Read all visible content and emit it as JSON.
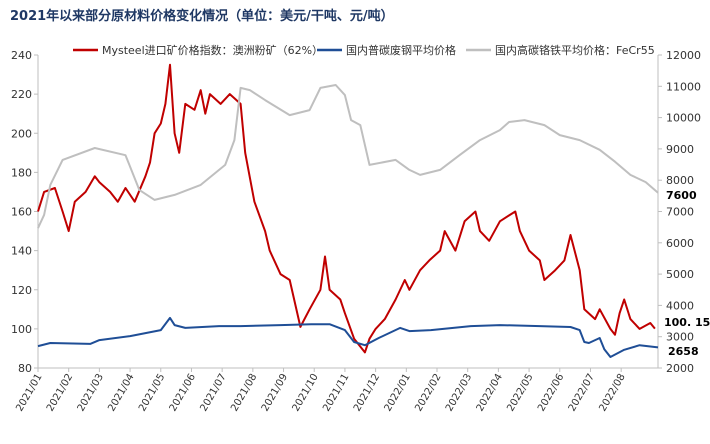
{
  "chart_data": {
    "type": "line",
    "title": "2021年以来部分原材料价格变化情况（单位：美元/干吨、元/吨）",
    "x_unit": "months since 2021/01",
    "xlim": [
      0,
      20.2
    ],
    "x_tick_labels": [
      "2021/01",
      "2021/02",
      "2021/03",
      "2021/04",
      "2021/05",
      "2021/06",
      "2021/07",
      "2021/08",
      "2021/09",
      "2021/10",
      "2021/11",
      "2021/12",
      "2022/01",
      "2022/02",
      "2022/03",
      "2022/04",
      "2022/05",
      "2022/06",
      "2022/07",
      "2022/08"
    ],
    "y_left": {
      "lim": [
        80,
        240
      ],
      "ticks": [
        80,
        100,
        120,
        140,
        160,
        180,
        200,
        220,
        240
      ]
    },
    "y_right": {
      "lim": [
        2000,
        12000
      ],
      "ticks": [
        2000,
        3000,
        4000,
        5000,
        6000,
        7000,
        8000,
        9000,
        10000,
        11000,
        12000
      ]
    },
    "legend_position": "top",
    "series": [
      {
        "name": "Mysteel进口矿价格指数：澳洲粉矿（62%）",
        "axis": "left",
        "color": "#c00000",
        "end_label": "100. 15",
        "points": [
          [
            0,
            160
          ],
          [
            0.2,
            170
          ],
          [
            0.55,
            172
          ],
          [
            0.8,
            160
          ],
          [
            1.0,
            150
          ],
          [
            1.2,
            165
          ],
          [
            1.55,
            170
          ],
          [
            1.85,
            178
          ],
          [
            2.0,
            175
          ],
          [
            2.35,
            170
          ],
          [
            2.6,
            165
          ],
          [
            2.85,
            172
          ],
          [
            3.15,
            165
          ],
          [
            3.5,
            178
          ],
          [
            3.65,
            185
          ],
          [
            3.8,
            200
          ],
          [
            4.0,
            205
          ],
          [
            4.15,
            215
          ],
          [
            4.3,
            235
          ],
          [
            4.45,
            200
          ],
          [
            4.6,
            190
          ],
          [
            4.8,
            215
          ],
          [
            5.1,
            212
          ],
          [
            5.3,
            222
          ],
          [
            5.45,
            210
          ],
          [
            5.6,
            220
          ],
          [
            5.95,
            215
          ],
          [
            6.25,
            220
          ],
          [
            6.6,
            215
          ],
          [
            6.75,
            190
          ],
          [
            7.05,
            165
          ],
          [
            7.4,
            150
          ],
          [
            7.55,
            140
          ],
          [
            7.9,
            128
          ],
          [
            8.2,
            125
          ],
          [
            8.55,
            101
          ],
          [
            8.85,
            110
          ],
          [
            9.2,
            120
          ],
          [
            9.35,
            137
          ],
          [
            9.5,
            120
          ],
          [
            9.85,
            115
          ],
          [
            10.0,
            108
          ],
          [
            10.3,
            95
          ],
          [
            10.65,
            88
          ],
          [
            10.8,
            95
          ],
          [
            11.0,
            100
          ],
          [
            11.3,
            105
          ],
          [
            11.65,
            115
          ],
          [
            11.95,
            125
          ],
          [
            12.1,
            120
          ],
          [
            12.45,
            130
          ],
          [
            12.75,
            135
          ],
          [
            13.1,
            140
          ],
          [
            13.25,
            150
          ],
          [
            13.6,
            140
          ],
          [
            13.9,
            155
          ],
          [
            14.25,
            160
          ],
          [
            14.4,
            150
          ],
          [
            14.7,
            145
          ],
          [
            15.05,
            155
          ],
          [
            15.35,
            158
          ],
          [
            15.55,
            160
          ],
          [
            15.7,
            150
          ],
          [
            16.0,
            140
          ],
          [
            16.35,
            135
          ],
          [
            16.5,
            125
          ],
          [
            16.85,
            130
          ],
          [
            17.15,
            135
          ],
          [
            17.35,
            148
          ],
          [
            17.65,
            130
          ],
          [
            17.8,
            110
          ],
          [
            18.15,
            105
          ],
          [
            18.3,
            110
          ],
          [
            18.65,
            100
          ],
          [
            18.8,
            97
          ],
          [
            18.95,
            108
          ],
          [
            19.1,
            115
          ],
          [
            19.3,
            105
          ],
          [
            19.6,
            100
          ],
          [
            19.95,
            103
          ],
          [
            20.1,
            100.15
          ]
        ]
      },
      {
        "name": "国内普碳废钢平均价格",
        "axis": "right",
        "color": "#1f4e96",
        "end_label": "2658",
        "points": [
          [
            0,
            2700
          ],
          [
            0.4,
            2800
          ],
          [
            1.7,
            2770
          ],
          [
            2.0,
            2890
          ],
          [
            3.0,
            3020
          ],
          [
            4.0,
            3210
          ],
          [
            4.3,
            3600
          ],
          [
            4.45,
            3370
          ],
          [
            4.8,
            3280
          ],
          [
            5.9,
            3340
          ],
          [
            6.6,
            3340
          ],
          [
            7.9,
            3370
          ],
          [
            8.9,
            3400
          ],
          [
            9.5,
            3400
          ],
          [
            10.0,
            3210
          ],
          [
            10.3,
            2830
          ],
          [
            10.65,
            2730
          ],
          [
            11.1,
            2960
          ],
          [
            11.8,
            3280
          ],
          [
            12.1,
            3180
          ],
          [
            12.8,
            3210
          ],
          [
            14.1,
            3340
          ],
          [
            15.05,
            3370
          ],
          [
            16.35,
            3340
          ],
          [
            17.35,
            3310
          ],
          [
            17.65,
            3210
          ],
          [
            17.8,
            2830
          ],
          [
            17.95,
            2800
          ],
          [
            18.3,
            2960
          ],
          [
            18.45,
            2600
          ],
          [
            18.65,
            2350
          ],
          [
            19.1,
            2580
          ],
          [
            19.6,
            2730
          ],
          [
            20.2,
            2658
          ]
        ]
      },
      {
        "name": "国内高碳铬铁平均价格：FeCr55",
        "axis": "right",
        "color": "#bfbfbf",
        "end_label": "7600",
        "points": [
          [
            0,
            6470
          ],
          [
            0.2,
            6890
          ],
          [
            0.4,
            7850
          ],
          [
            0.8,
            8650
          ],
          [
            1.85,
            9030
          ],
          [
            2.85,
            8800
          ],
          [
            3.3,
            7690
          ],
          [
            3.8,
            7370
          ],
          [
            4.45,
            7530
          ],
          [
            5.3,
            7850
          ],
          [
            6.1,
            8490
          ],
          [
            6.4,
            9280
          ],
          [
            6.6,
            10950
          ],
          [
            6.9,
            10880
          ],
          [
            7.4,
            10560
          ],
          [
            8.2,
            10080
          ],
          [
            8.85,
            10240
          ],
          [
            9.2,
            10950
          ],
          [
            9.7,
            11040
          ],
          [
            10.0,
            10720
          ],
          [
            10.2,
            9920
          ],
          [
            10.5,
            9760
          ],
          [
            10.8,
            8490
          ],
          [
            11.65,
            8650
          ],
          [
            12.1,
            8330
          ],
          [
            12.45,
            8170
          ],
          [
            13.1,
            8330
          ],
          [
            13.75,
            8810
          ],
          [
            14.4,
            9280
          ],
          [
            15.05,
            9600
          ],
          [
            15.35,
            9860
          ],
          [
            15.85,
            9920
          ],
          [
            16.5,
            9760
          ],
          [
            17.0,
            9440
          ],
          [
            17.65,
            9280
          ],
          [
            18.3,
            8970
          ],
          [
            18.8,
            8590
          ],
          [
            19.3,
            8170
          ],
          [
            19.8,
            7940
          ],
          [
            20.2,
            7600
          ]
        ]
      }
    ]
  }
}
